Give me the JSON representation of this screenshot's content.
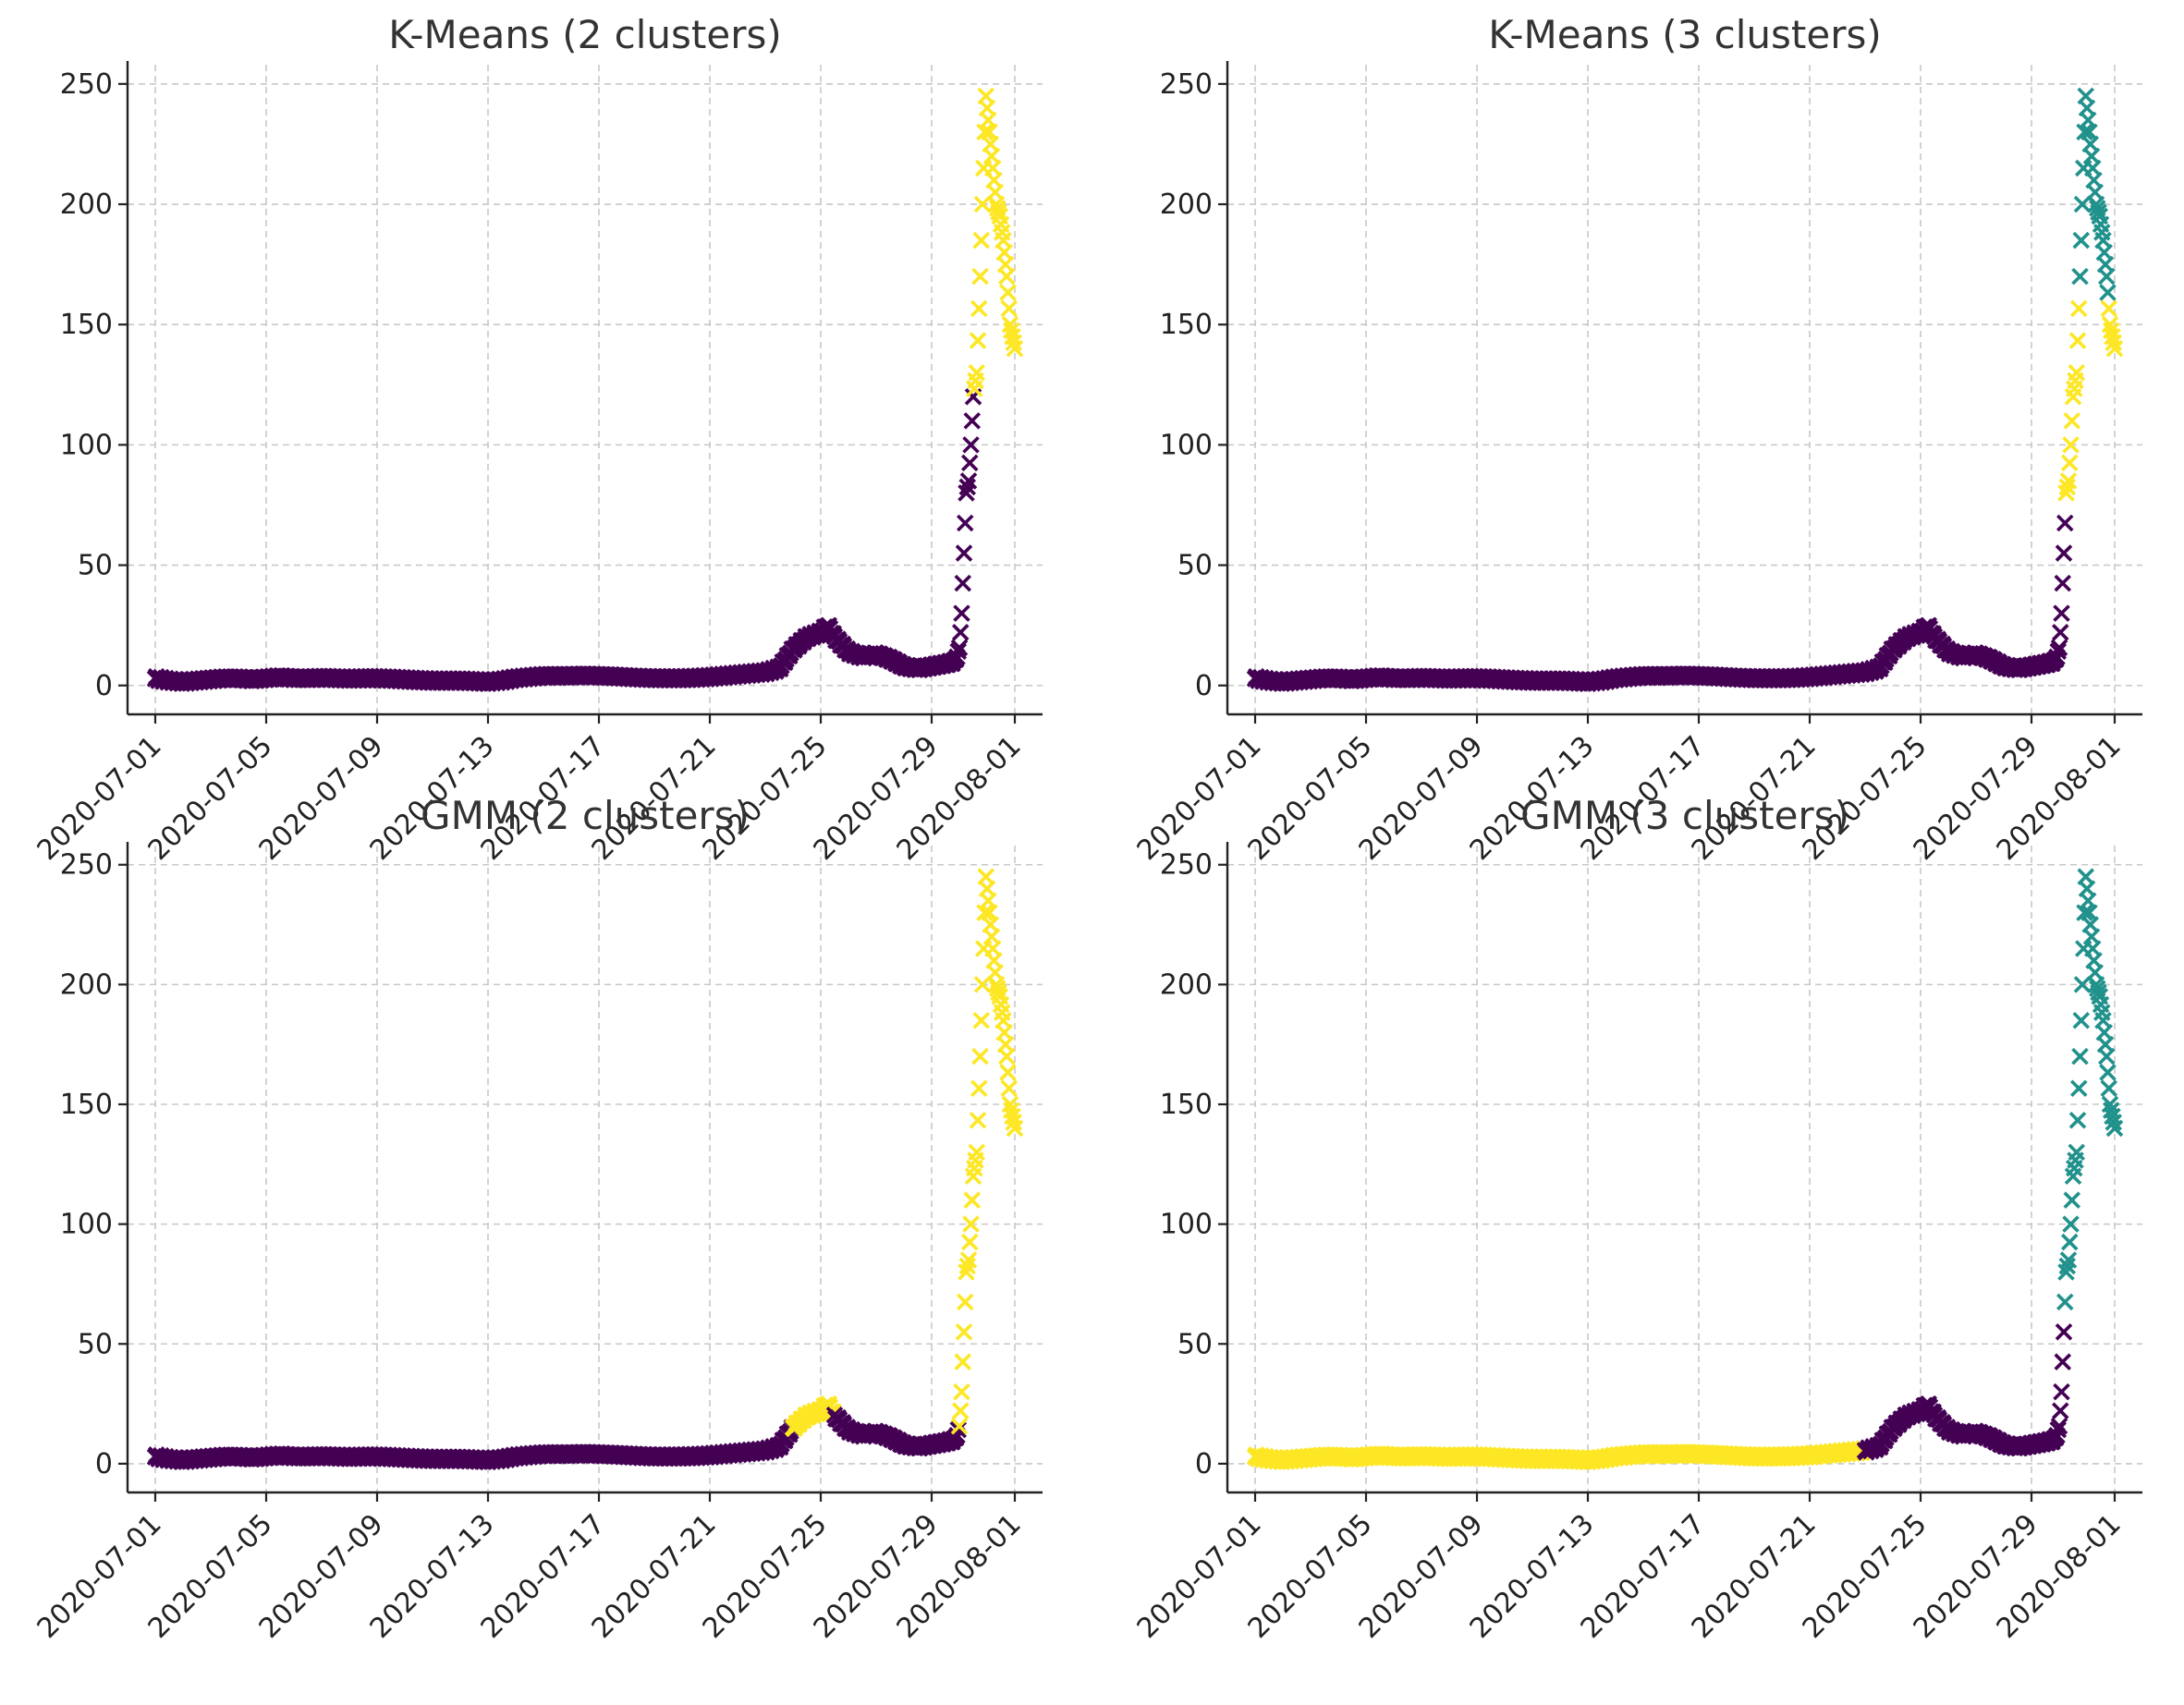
{
  "colors": {
    "purple": "#440154",
    "teal": "#21918c",
    "yellow": "#fde725",
    "grid": "#c8c8c8",
    "text": "#222222"
  },
  "chart_data": [
    {
      "type": "scatter",
      "title": "K-Means (2 clusters)",
      "xlabel": "",
      "ylabel": "",
      "marker": "x",
      "grid": true,
      "xlim": [
        "2020-06-30",
        "2020-08-02"
      ],
      "ylim": [
        -12,
        258
      ],
      "xticks": [
        "2020-07-01",
        "2020-07-05",
        "2020-07-09",
        "2020-07-13",
        "2020-07-17",
        "2020-07-21",
        "2020-07-25",
        "2020-07-29",
        "2020-08-01"
      ],
      "yticks": [
        0,
        50,
        100,
        150,
        200,
        250
      ],
      "segments": [
        {
          "from": "2020-07-01",
          "to": "2020-07-30T13:00",
          "color": "#440154"
        },
        {
          "from": "2020-07-30T13:00",
          "to": "2020-08-01",
          "color": "#fde725"
        }
      ]
    },
    {
      "type": "scatter",
      "title": "K-Means (3 clusters)",
      "xlabel": "",
      "ylabel": "",
      "marker": "x",
      "grid": true,
      "xlim": [
        "2020-06-30",
        "2020-08-02"
      ],
      "ylim": [
        -12,
        258
      ],
      "xticks": [
        "2020-07-01",
        "2020-07-05",
        "2020-07-09",
        "2020-07-13",
        "2020-07-17",
        "2020-07-21",
        "2020-07-25",
        "2020-07-29",
        "2020-08-01"
      ],
      "yticks": [
        0,
        50,
        100,
        150,
        200,
        250
      ],
      "segments": [
        {
          "from": "2020-07-01",
          "to": "2020-07-30T06:00",
          "color": "#440154"
        },
        {
          "from": "2020-07-30T06:00",
          "to": "2020-07-30T18:00",
          "color": "#fde725"
        },
        {
          "from": "2020-07-30T18:00",
          "to": "2020-07-31T19:00",
          "color": "#21918c"
        },
        {
          "from": "2020-07-31T19:00",
          "to": "2020-08-01",
          "color": "#fde725"
        }
      ]
    },
    {
      "type": "scatter",
      "title": "GMM (2 clusters)",
      "xlabel": "",
      "ylabel": "",
      "marker": "x",
      "grid": true,
      "xlim": [
        "2020-06-30",
        "2020-08-02"
      ],
      "ylim": [
        -12,
        258
      ],
      "xticks": [
        "2020-07-01",
        "2020-07-05",
        "2020-07-09",
        "2020-07-13",
        "2020-07-17",
        "2020-07-21",
        "2020-07-25",
        "2020-07-29",
        "2020-08-01"
      ],
      "yticks": [
        0,
        50,
        100,
        150,
        200,
        250
      ],
      "segments": [
        {
          "from": "2020-07-01",
          "to": "2020-07-24T00:00",
          "color": "#440154"
        },
        {
          "from": "2020-07-24T00:00",
          "to": "2020-07-25T12:00",
          "color": "#fde725"
        },
        {
          "from": "2020-07-25T12:00",
          "to": "2020-07-30T00:00",
          "color": "#440154"
        },
        {
          "from": "2020-07-30T00:00",
          "to": "2020-08-01",
          "color": "#fde725"
        }
      ]
    },
    {
      "type": "scatter",
      "title": "GMM (3 clusters)",
      "xlabel": "",
      "ylabel": "",
      "marker": "x",
      "grid": true,
      "xlim": [
        "2020-06-30",
        "2020-08-02"
      ],
      "ylim": [
        -12,
        258
      ],
      "xticks": [
        "2020-07-01",
        "2020-07-05",
        "2020-07-09",
        "2020-07-13",
        "2020-07-17",
        "2020-07-21",
        "2020-07-25",
        "2020-07-29",
        "2020-08-01"
      ],
      "yticks": [
        0,
        50,
        100,
        150,
        200,
        250
      ],
      "segments": [
        {
          "from": "2020-07-01",
          "to": "2020-07-23T00:00",
          "color": "#fde725"
        },
        {
          "from": "2020-07-23T00:00",
          "to": "2020-07-30T05:00",
          "color": "#440154"
        },
        {
          "from": "2020-07-30T05:00",
          "to": "2020-08-01",
          "color": "#21918c"
        }
      ]
    }
  ],
  "series_points": [
    [
      "2020-07-01T00:00",
      3
    ],
    [
      "2020-07-01T12:00",
      2
    ],
    [
      "2020-07-02T00:00",
      1.5
    ],
    [
      "2020-07-02T12:00",
      2
    ],
    [
      "2020-07-03T00:00",
      2.5
    ],
    [
      "2020-07-03T12:00",
      3
    ],
    [
      "2020-07-04T00:00",
      3
    ],
    [
      "2020-07-04T12:00",
      2.5
    ],
    [
      "2020-07-05T00:00",
      3
    ],
    [
      "2020-07-05T12:00",
      3.5
    ],
    [
      "2020-07-06T00:00",
      3
    ],
    [
      "2020-07-06T12:00",
      3
    ],
    [
      "2020-07-07T00:00",
      3.2
    ],
    [
      "2020-07-07T12:00",
      3
    ],
    [
      "2020-07-08T00:00",
      2.8
    ],
    [
      "2020-07-08T12:00",
      3
    ],
    [
      "2020-07-09T00:00",
      3
    ],
    [
      "2020-07-09T12:00",
      2.8
    ],
    [
      "2020-07-10T00:00",
      2.5
    ],
    [
      "2020-07-10T12:00",
      2.2
    ],
    [
      "2020-07-11T00:00",
      2
    ],
    [
      "2020-07-11T12:00",
      2
    ],
    [
      "2020-07-12T00:00",
      2
    ],
    [
      "2020-07-12T12:00",
      1.8
    ],
    [
      "2020-07-13T00:00",
      1.5
    ],
    [
      "2020-07-13T12:00",
      2
    ],
    [
      "2020-07-14T00:00",
      3
    ],
    [
      "2020-07-14T12:00",
      3.5
    ],
    [
      "2020-07-15T00:00",
      4
    ],
    [
      "2020-07-15T12:00",
      4
    ],
    [
      "2020-07-16T00:00",
      4
    ],
    [
      "2020-07-16T12:00",
      4.2
    ],
    [
      "2020-07-17T00:00",
      4
    ],
    [
      "2020-07-17T12:00",
      3.8
    ],
    [
      "2020-07-18T00:00",
      3.5
    ],
    [
      "2020-07-18T12:00",
      3.2
    ],
    [
      "2020-07-19T00:00",
      3
    ],
    [
      "2020-07-19T12:00",
      3
    ],
    [
      "2020-07-20T00:00",
      3
    ],
    [
      "2020-07-20T12:00",
      3.2
    ],
    [
      "2020-07-21T00:00",
      3.5
    ],
    [
      "2020-07-21T12:00",
      4
    ],
    [
      "2020-07-22T00:00",
      4.5
    ],
    [
      "2020-07-22T12:00",
      5
    ],
    [
      "2020-07-23T00:00",
      5.5
    ],
    [
      "2020-07-23T12:00",
      7
    ],
    [
      "2020-07-24T00:00",
      15
    ],
    [
      "2020-07-24T12:00",
      20
    ],
    [
      "2020-07-25T00:00",
      22
    ],
    [
      "2020-07-25T06:00",
      25
    ],
    [
      "2020-07-25T12:00",
      20
    ],
    [
      "2020-07-26T00:00",
      14
    ],
    [
      "2020-07-26T12:00",
      12
    ],
    [
      "2020-07-27T00:00",
      13
    ],
    [
      "2020-07-27T12:00",
      11
    ],
    [
      "2020-07-28T00:00",
      8
    ],
    [
      "2020-07-28T12:00",
      7
    ],
    [
      "2020-07-29T00:00",
      8
    ],
    [
      "2020-07-29T12:00",
      9
    ],
    [
      "2020-07-29T20:00",
      10
    ],
    [
      "2020-07-30T00:00",
      15
    ],
    [
      "2020-07-30T02:00",
      30
    ],
    [
      "2020-07-30T04:00",
      55
    ],
    [
      "2020-07-30T06:00",
      80
    ],
    [
      "2020-07-30T08:00",
      85
    ],
    [
      "2020-07-30T10:00",
      100
    ],
    [
      "2020-07-30T12:00",
      120
    ],
    [
      "2020-07-30T15:00",
      130
    ],
    [
      "2020-07-30T18:00",
      170
    ],
    [
      "2020-07-30T20:00",
      200
    ],
    [
      "2020-07-30T23:00",
      245
    ],
    [
      "2020-07-31T02:00",
      230
    ],
    [
      "2020-07-31T05:00",
      215
    ],
    [
      "2020-07-31T08:00",
      200
    ],
    [
      "2020-07-31T11:00",
      195
    ],
    [
      "2020-07-31T14:00",
      185
    ],
    [
      "2020-07-31T17:00",
      170
    ],
    [
      "2020-07-31T20:00",
      150
    ],
    [
      "2020-07-31T22:00",
      145
    ],
    [
      "2020-08-01T00:00",
      140
    ]
  ]
}
